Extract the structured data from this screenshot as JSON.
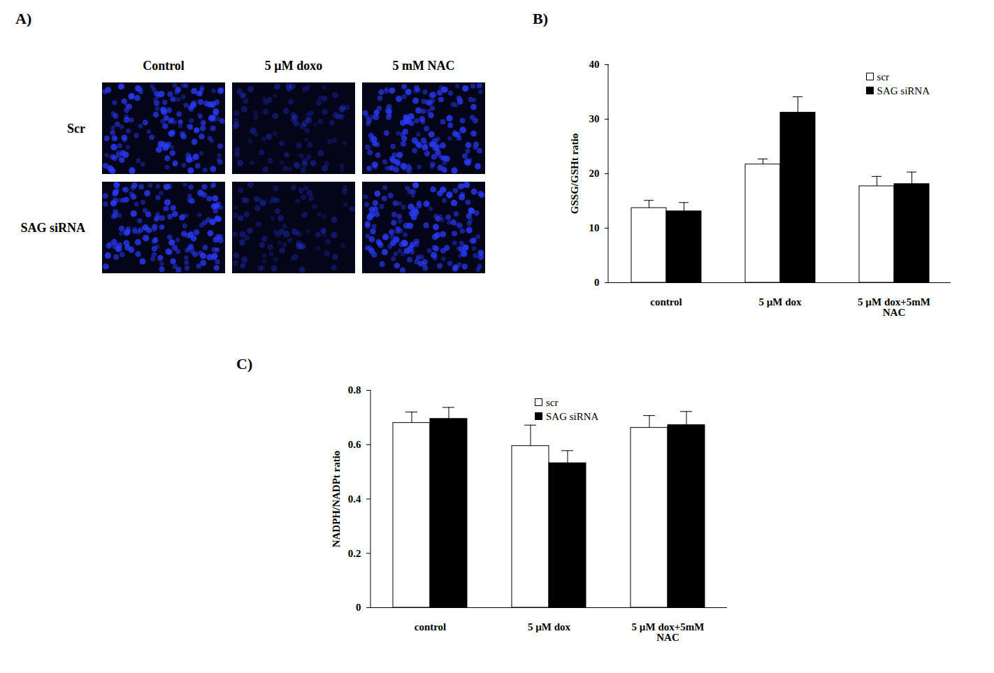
{
  "image_panel": {
    "label": "A)",
    "columns": [
      "Control",
      "5 µM doxo",
      "5 mM NAC"
    ],
    "rows": [
      "Scr",
      "SAG siRNA"
    ]
  },
  "chart_data": [
    {
      "type": "bar",
      "title": "B)",
      "categories": [
        "control",
        "5 µM dox",
        "5 µM dox+5mM NAC"
      ],
      "y_label": "GSSG/GSHt ratio",
      "ylim": [
        0,
        40
      ],
      "yticks": [
        0,
        10,
        20,
        30,
        40
      ],
      "legend": "top-right",
      "series": [
        {
          "name": "scr",
          "color": "#ffffff",
          "values": [
            13.7,
            21.7,
            17.7
          ],
          "errors": [
            1.4,
            1.0,
            1.8
          ]
        },
        {
          "name": "SAG siRNA",
          "color": "#000000",
          "values": [
            13.1,
            31.2,
            18.1
          ],
          "errors": [
            1.6,
            2.9,
            2.2
          ]
        }
      ]
    },
    {
      "type": "bar",
      "title": "C)",
      "categories": [
        "control",
        "5 µM dox",
        "5 µM dox+5mM NAC"
      ],
      "y_label": "NADPH/NADPt ratio",
      "ylim": [
        0,
        0.8
      ],
      "yticks": [
        0,
        0.2,
        0.4,
        0.6,
        0.8
      ],
      "legend": "top",
      "series": [
        {
          "name": "scr",
          "color": "#ffffff",
          "values": [
            0.68,
            0.595,
            0.662
          ],
          "errors": [
            0.04,
            0.077,
            0.045
          ]
        },
        {
          "name": "SAG siRNA",
          "color": "#000000",
          "values": [
            0.695,
            0.532,
            0.672
          ],
          "errors": [
            0.042,
            0.046,
            0.05
          ]
        }
      ]
    }
  ]
}
